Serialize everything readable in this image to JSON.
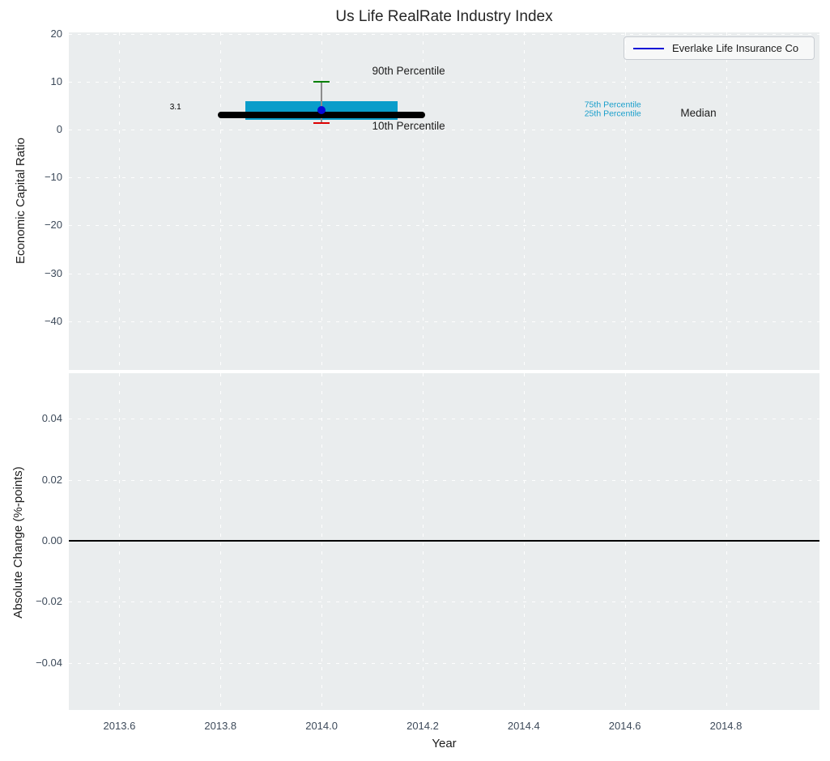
{
  "title": "Us Life RealRate Industry Index",
  "legend": {
    "label": "Everlake Life Insurance Co",
    "line_color": "#0909d6",
    "position": "upper right"
  },
  "colors": {
    "plot_bg": "#eaedee",
    "grid": "#ffffff",
    "tick_label": "#3d4a5a",
    "text": "#1c1c1c",
    "box_fill": "#0a9dca",
    "median_line": "#000000",
    "whisker": "#8c8c8c",
    "cap_90th": "#008000",
    "cap_10th": "#dd0000",
    "company_dot": "#0909d6",
    "zero_line": "#000000",
    "percentile_label": "#189ecb"
  },
  "chart_data": {
    "type": "boxplot",
    "title": "Us Life RealRate Industry Index",
    "xlabel": "Year",
    "xlim": [
      2013.5,
      2014.985
    ],
    "xticks": [
      {
        "v": 2013.6,
        "label": "2013.6"
      },
      {
        "v": 2013.8,
        "label": "2013.8"
      },
      {
        "v": 2014.0,
        "label": "2014.0"
      },
      {
        "v": 2014.2,
        "label": "2014.2"
      },
      {
        "v": 2014.4,
        "label": "2014.4"
      },
      {
        "v": 2014.6,
        "label": "2014.6"
      },
      {
        "v": 2014.8,
        "label": "2014.8"
      }
    ],
    "grid": {
      "style": "dashed",
      "color": "#ffffff"
    },
    "panels": [
      {
        "name": "economic-capital-ratio",
        "ylabel": "Economic Capital Ratio",
        "ylim": [
          -50.2,
          20.3
        ],
        "yticks": [
          {
            "v": 20,
            "label": "20"
          },
          {
            "v": 10,
            "label": "10"
          },
          {
            "v": 0,
            "label": "0"
          },
          {
            "v": -10,
            "label": "−10"
          },
          {
            "v": -20,
            "label": "−20"
          },
          {
            "v": -30,
            "label": "−30"
          },
          {
            "v": -40,
            "label": "−40"
          }
        ],
        "box": {
          "x": 2014.0,
          "box_half_width": 0.15,
          "median_half_width": 0.205,
          "p90": 10.0,
          "p75": 6.0,
          "median": 3.1,
          "p25": 2.0,
          "p10": 1.4,
          "median_value_label": "3.1",
          "company": {
            "name": "Everlake Life Insurance Co",
            "value": 4.1
          }
        },
        "annotations": [
          {
            "text": "90th Percentile",
            "x": 2014.1,
            "y": 12.0,
            "size": 13.5,
            "color": "#1c1c1c",
            "align": "left",
            "name": "annotation-90th-percentile"
          },
          {
            "text": "10th Percentile",
            "x": 2014.1,
            "y": 0.55,
            "size": 13.5,
            "color": "#1c1c1c",
            "align": "left",
            "name": "annotation-10th-percentile"
          },
          {
            "text": "75th Percentile",
            "x": 2014.52,
            "y": 4.95,
            "size": 10.5,
            "color": "#189ecb",
            "align": "left",
            "name": "annotation-75th-percentile"
          },
          {
            "text": "25th Percentile",
            "x": 2014.52,
            "y": 3.05,
            "size": 10.5,
            "color": "#189ecb",
            "align": "left",
            "name": "annotation-25th-percentile"
          },
          {
            "text": "Median",
            "x": 2014.71,
            "y": 3.2,
            "size": 13.5,
            "color": "#1c1c1c",
            "align": "left",
            "name": "annotation-median"
          },
          {
            "text": "3.1",
            "x": 2013.711,
            "y": 4.6,
            "size": 10,
            "color": "#000000",
            "align": "center",
            "name": "annotation-median-value"
          }
        ]
      },
      {
        "name": "absolute-change",
        "ylabel": "Absolute Change (%-points)",
        "ylim": [
          -0.0555,
          0.055
        ],
        "yticks": [
          {
            "v": 0.04,
            "label": "0.04"
          },
          {
            "v": 0.02,
            "label": "0.02"
          },
          {
            "v": 0.0,
            "label": "0.00"
          },
          {
            "v": -0.02,
            "label": "−0.02"
          },
          {
            "v": -0.04,
            "label": "−0.04"
          }
        ],
        "zero_line": 0.0
      }
    ]
  }
}
